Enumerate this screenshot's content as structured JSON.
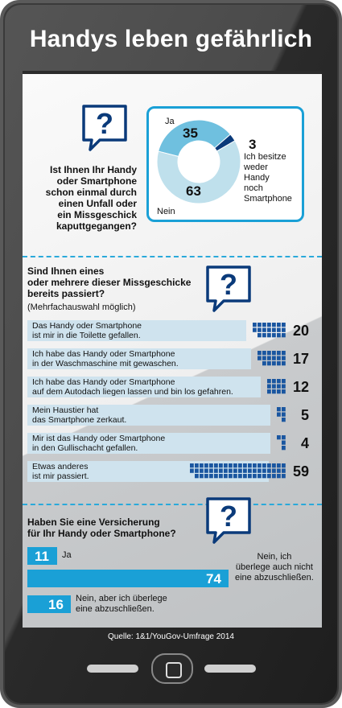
{
  "title": "Handys leben gefährlich",
  "source": "Quelle: 1&1/YouGov-Umfrage 2014",
  "colors": {
    "accent": "#1aa0d6",
    "navy": "#0a3a7a",
    "light_blue": "#bfe0ec",
    "mid_blue": "#6fc0df"
  },
  "chart_data": [
    {
      "type": "pie",
      "question": "Ist Ihnen Ihr Handy oder Smartphone schon einmal durch einen Unfall oder ein Missgeschick kaputtgegangen?",
      "slices": [
        {
          "label": "Ja",
          "value": 35,
          "color": "#6fc0df"
        },
        {
          "label": "Nein",
          "value": 63,
          "color": "#bfe0ec"
        },
        {
          "label": "Ich besitze weder Handy noch Smartphone",
          "value": 3,
          "color": "#0a3a7a"
        }
      ]
    },
    {
      "type": "bar",
      "question": "Sind Ihnen eines oder mehrere dieser Missgeschicke bereits passiert?",
      "note": "(Mehrfachauswahl möglich)",
      "categories": [
        "Das Handy oder Smartphone ist mir in die Toilette gefallen.",
        "Ich habe das Handy oder Smartphone in der Waschmaschine mit gewaschen.",
        "Ich habe das Handy oder Smartphone auf dem Autodach liegen lassen und bin los gefahren.",
        "Mein Haustier hat das Smartphone zerkaut.",
        "Mir ist das Handy oder Smartphone in den Gullischacht gefallen.",
        "Etwas anderes ist mir passiert."
      ],
      "label_lines": [
        [
          "Das Handy oder Smartphone",
          "ist mir in die Toilette gefallen."
        ],
        [
          "Ich habe das Handy oder Smartphone",
          "in der Waschmaschine mit gewaschen."
        ],
        [
          "Ich habe das Handy oder Smartphone",
          "auf dem Autodach liegen lassen und bin los gefahren."
        ],
        [
          "Mein Haustier hat",
          "das Smartphone zerkaut."
        ],
        [
          "Mir ist das Handy oder Smartphone",
          "in den Gullischacht gefallen."
        ],
        [
          "Etwas anderes",
          "ist mir passiert."
        ]
      ],
      "values": [
        20,
        17,
        12,
        5,
        4,
        59
      ]
    },
    {
      "type": "bar",
      "question": "Haben Sie eine Versicherung für Ihr Handy oder Smartphone?",
      "categories": [
        "Ja",
        "Nein, ich überlege auch nicht eine abzuschließen.",
        "Nein, aber ich überlege eine abzuschließen."
      ],
      "values": [
        11,
        74,
        16
      ]
    }
  ],
  "labels": {
    "pie_q_lines": [
      "Ist Ihnen Ihr Handy",
      "oder Smartphone",
      "schon einmal durch",
      "einen Unfall oder",
      "ein Missgeschick",
      "kaputtgegangen?"
    ],
    "pie_ja": "Ja",
    "pie_nein": "Nein",
    "pie_other_lines": [
      "Ich besitze",
      "weder",
      "Handy",
      "noch",
      "Smartphone"
    ],
    "q2_lines": [
      "Sind Ihnen eines",
      "oder mehrere dieser Missgeschicke",
      "bereits passiert?"
    ],
    "q2_note": "(Mehrfachauswahl möglich)",
    "q3_lines": [
      "Haben Sie eine Versicherung",
      "für Ihr Handy oder Smartphone?"
    ],
    "insur_labels": [
      [
        "Ja"
      ],
      [
        "Nein, ich",
        "überlege auch nicht",
        "eine abzuschließen."
      ],
      [
        "Nein, aber ich überlege",
        "eine abzuschließen."
      ]
    ],
    "question_mark": "?"
  }
}
